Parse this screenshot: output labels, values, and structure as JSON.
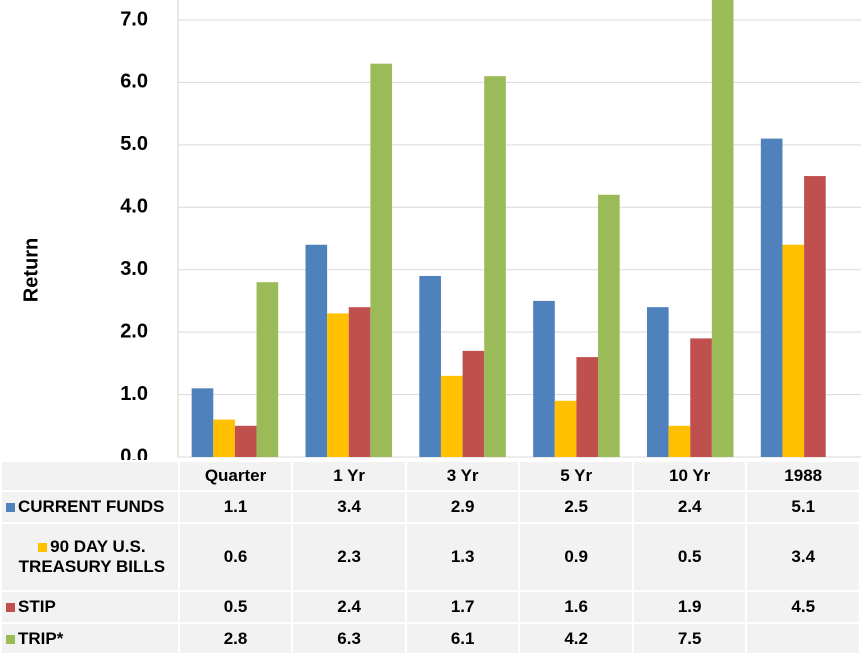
{
  "chart_data": {
    "type": "bar",
    "ylabel": "Return",
    "categories": [
      "Quarter",
      "1 Yr",
      "3 Yr",
      "5 Yr",
      "10 Yr",
      "1988"
    ],
    "series": [
      {
        "name": "CURRENT FUNDS",
        "color": "#4f81bd",
        "values": [
          1.1,
          3.4,
          2.9,
          2.5,
          2.4,
          5.1
        ]
      },
      {
        "name": "90 DAY U.S. TREASURY BILLS",
        "color": "#ffc000",
        "values": [
          0.6,
          2.3,
          1.3,
          0.9,
          0.5,
          3.4
        ]
      },
      {
        "name": "STIP",
        "color": "#c0504d",
        "values": [
          0.5,
          2.4,
          1.7,
          1.6,
          1.9,
          4.5
        ]
      },
      {
        "name": "TRIP*",
        "color": "#9bbb59",
        "values": [
          2.8,
          6.3,
          6.1,
          4.2,
          7.5,
          null
        ]
      }
    ],
    "ylim": [
      0,
      7.32
    ],
    "yticks": [
      {
        "value": 0,
        "label": "0.0"
      },
      {
        "value": 1,
        "label": "1.0"
      },
      {
        "value": 2,
        "label": "2.0"
      },
      {
        "value": 3,
        "label": "3.0"
      },
      {
        "value": 4,
        "label": "4.0"
      },
      {
        "value": 5,
        "label": "5.0"
      },
      {
        "value": 6,
        "label": "6.0"
      },
      {
        "value": 7,
        "label": "7.0"
      }
    ],
    "grid": true
  }
}
